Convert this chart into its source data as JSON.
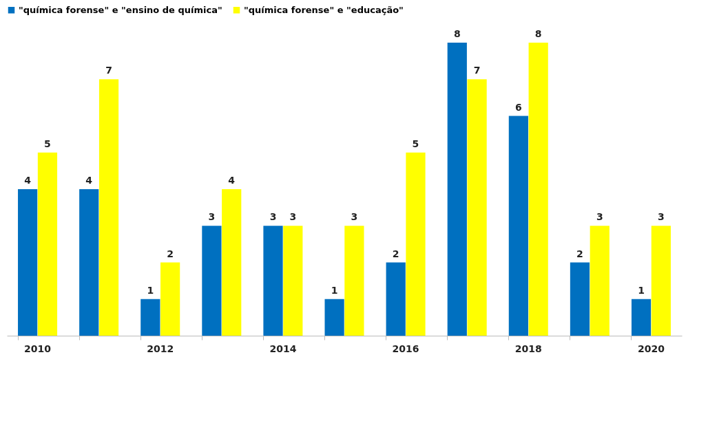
{
  "chart_data": {
    "type": "bar",
    "categories": [
      "2010",
      null,
      "2012",
      null,
      "2014",
      null,
      "2016",
      null,
      "2018",
      null,
      "2020"
    ],
    "series": [
      {
        "name": "\"química forense\" e \"ensino de química\"",
        "color": "#0070c0",
        "values": [
          4,
          4,
          1,
          3,
          3,
          1,
          2,
          8,
          6,
          2,
          1
        ]
      },
      {
        "name": "\"química forense\" e \"educação\"",
        "color": "#ffff00",
        "values": [
          5,
          7,
          2,
          4,
          3,
          3,
          5,
          7,
          8,
          3,
          3
        ]
      }
    ],
    "data_labels": true,
    "legend": "top",
    "grid": false
  }
}
